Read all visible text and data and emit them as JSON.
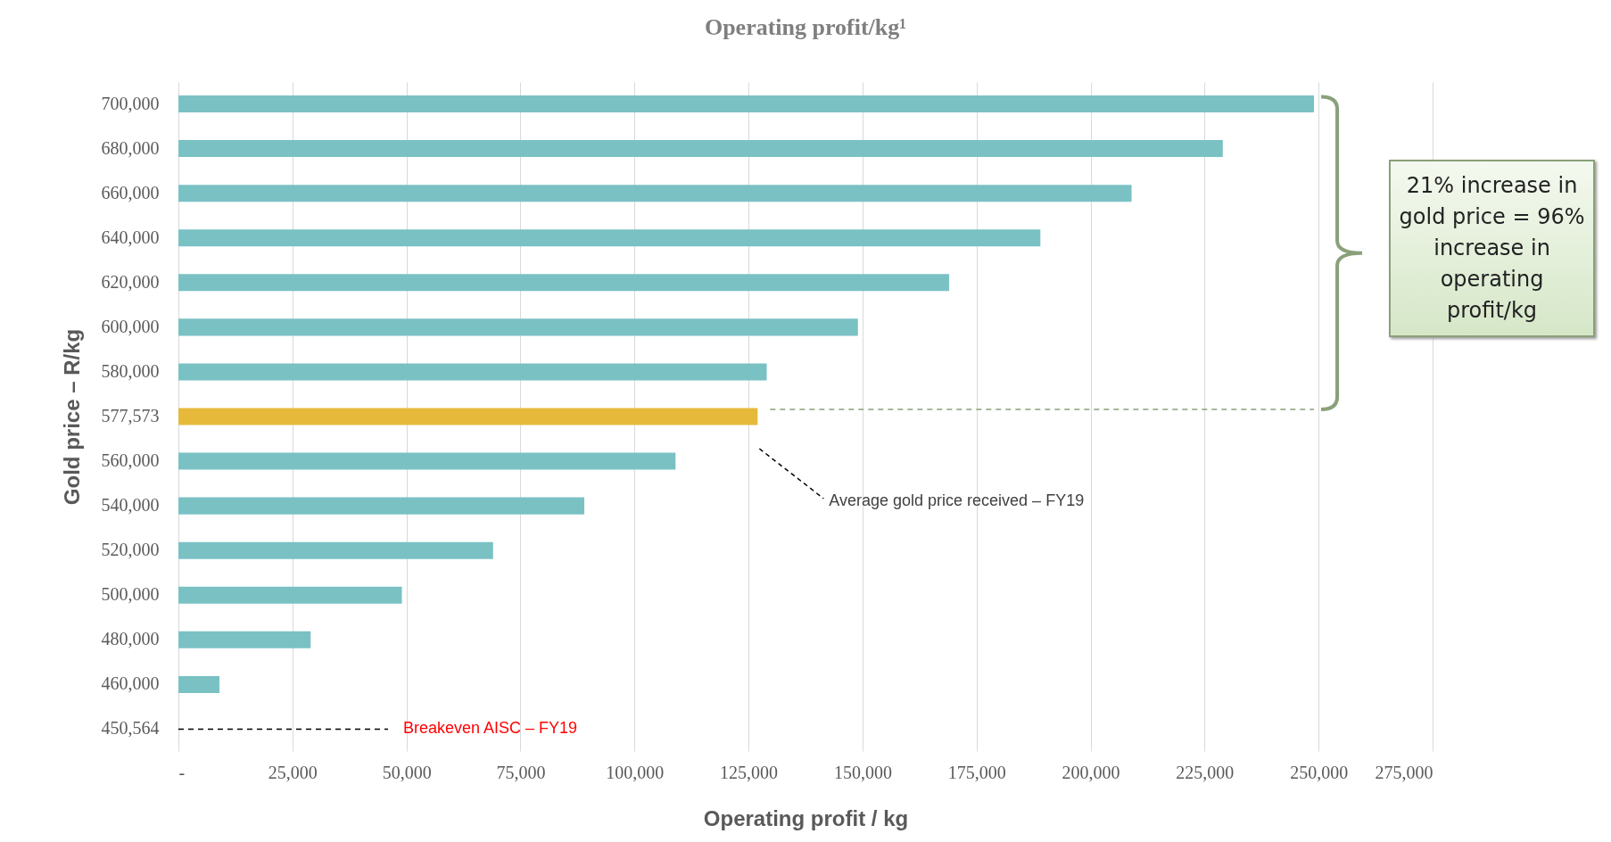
{
  "chart_data": {
    "type": "bar",
    "orientation": "horizontal",
    "title": "Operating profit/kg¹",
    "xlabel": "Operating profit / kg",
    "ylabel": "Gold price – R/kg",
    "categories": [
      "700,000",
      "680,000",
      "660,000",
      "640,000",
      "620,000",
      "600,000",
      "580,000",
      "577,573",
      "560,000",
      "540,000",
      "520,000",
      "500,000",
      "480,000",
      "460,000",
      "450,564"
    ],
    "values": [
      249000,
      229000,
      209000,
      189000,
      169000,
      149000,
      129000,
      127000,
      109000,
      89000,
      69000,
      49000,
      29000,
      9000,
      null
    ],
    "colors": [
      "#7ac1c4",
      "#7ac1c4",
      "#7ac1c4",
      "#7ac1c4",
      "#7ac1c4",
      "#7ac1c4",
      "#7ac1c4",
      "#e6b93a",
      "#7ac1c4",
      "#7ac1c4",
      "#7ac1c4",
      "#7ac1c4",
      "#7ac1c4",
      "#7ac1c4",
      "#7ac1c4"
    ],
    "xlim": [
      0,
      275000
    ],
    "xticks": [
      {
        "value": 0,
        "label": "-"
      },
      {
        "value": 25000,
        "label": "25,000"
      },
      {
        "value": 50000,
        "label": "50,000"
      },
      {
        "value": 75000,
        "label": "75,000"
      },
      {
        "value": 100000,
        "label": "100,000"
      },
      {
        "value": 125000,
        "label": "125,000"
      },
      {
        "value": 150000,
        "label": "150,000"
      },
      {
        "value": 175000,
        "label": "175,000"
      },
      {
        "value": 200000,
        "label": "200,000"
      },
      {
        "value": 225000,
        "label": "225,000"
      },
      {
        "value": 250000,
        "label": "250,000"
      },
      {
        "value": 275000,
        "label": "275,000"
      }
    ],
    "grid": "x",
    "ref_lines": [
      {
        "axis": "y",
        "value": "577,573",
        "color": "#8aa07a",
        "line_style": "dashed"
      },
      {
        "axis": "y",
        "value": "450,564",
        "label": "Breakeven AISC – FY19",
        "color": "#000000",
        "line_style": "dashed"
      }
    ],
    "annotations": [
      "21% increase in gold price = 96% increase in operating profit/kg",
      "Average gold price received – FY19"
    ]
  }
}
